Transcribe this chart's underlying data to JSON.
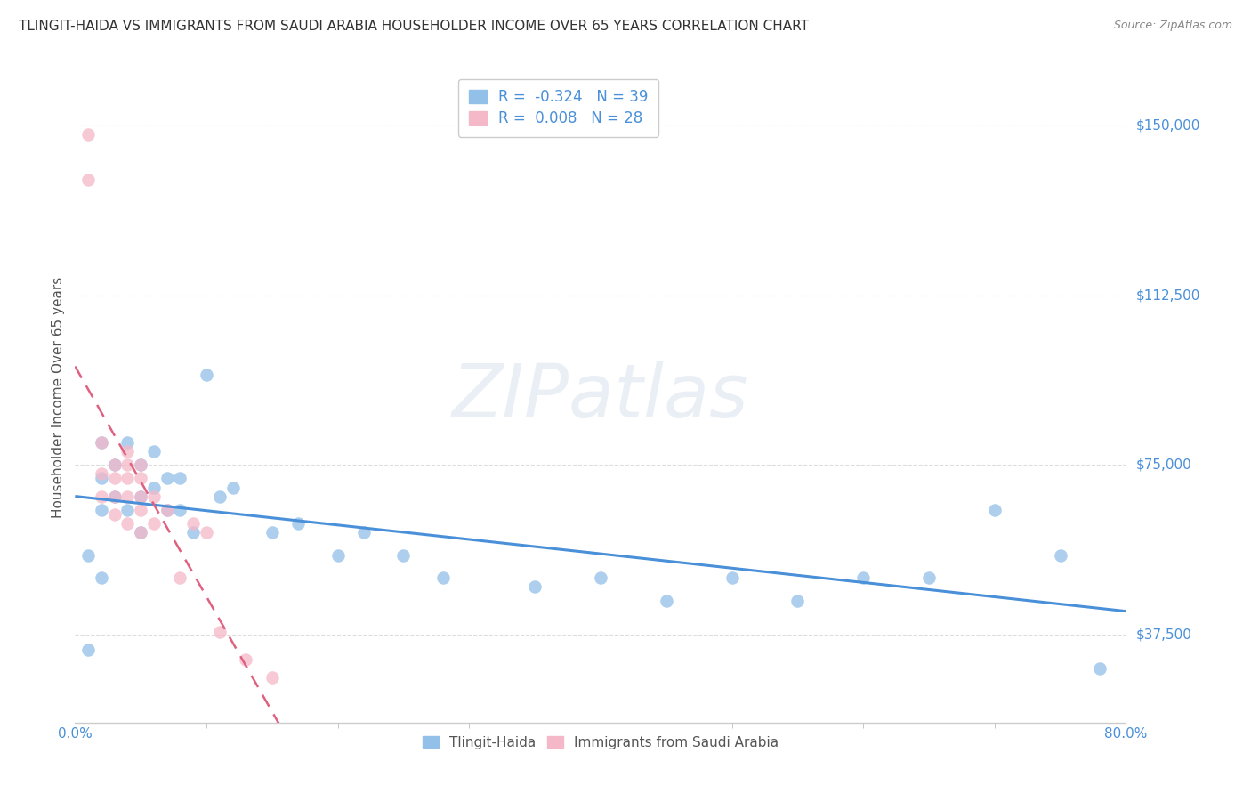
{
  "title": "TLINGIT-HAIDA VS IMMIGRANTS FROM SAUDI ARABIA HOUSEHOLDER INCOME OVER 65 YEARS CORRELATION CHART",
  "source": "Source: ZipAtlas.com",
  "ylabel": "Householder Income Over 65 years",
  "xlim": [
    0.0,
    0.8
  ],
  "ylim": [
    18000,
    162000
  ],
  "yticks": [
    37500,
    75000,
    112500,
    150000
  ],
  "ytick_labels": [
    "$37,500",
    "$75,000",
    "$112,500",
    "$150,000"
  ],
  "xtick_labels": [
    "0.0%",
    "80.0%"
  ],
  "background_color": "#ffffff",
  "grid_color": "#dddddd",
  "watermark_text": "ZIPatlas",
  "blue_color": "#92c0e8",
  "pink_color": "#f5b8c8",
  "blue_line_color": "#4a90d9",
  "pink_line_color": "#e06080",
  "legend_R_blue": "-0.324",
  "legend_N_blue": "39",
  "legend_R_pink": "0.008",
  "legend_N_pink": "28",
  "tlingit_x": [
    0.01,
    0.01,
    0.02,
    0.02,
    0.02,
    0.02,
    0.03,
    0.03,
    0.04,
    0.04,
    0.05,
    0.05,
    0.05,
    0.06,
    0.06,
    0.07,
    0.07,
    0.08,
    0.08,
    0.09,
    0.1,
    0.11,
    0.12,
    0.15,
    0.17,
    0.2,
    0.22,
    0.25,
    0.28,
    0.35,
    0.4,
    0.45,
    0.5,
    0.55,
    0.6,
    0.65,
    0.7,
    0.75,
    0.78
  ],
  "tlingit_y": [
    55000,
    34000,
    80000,
    72000,
    65000,
    50000,
    75000,
    68000,
    80000,
    65000,
    75000,
    68000,
    60000,
    78000,
    70000,
    72000,
    65000,
    72000,
    65000,
    60000,
    95000,
    68000,
    70000,
    60000,
    62000,
    55000,
    60000,
    55000,
    50000,
    48000,
    50000,
    45000,
    50000,
    45000,
    50000,
    50000,
    65000,
    55000,
    30000
  ],
  "saudi_x": [
    0.01,
    0.01,
    0.02,
    0.02,
    0.02,
    0.03,
    0.03,
    0.03,
    0.03,
    0.04,
    0.04,
    0.04,
    0.04,
    0.04,
    0.05,
    0.05,
    0.05,
    0.05,
    0.05,
    0.06,
    0.06,
    0.07,
    0.08,
    0.09,
    0.1,
    0.11,
    0.13,
    0.15
  ],
  "saudi_y": [
    148000,
    138000,
    80000,
    73000,
    68000,
    75000,
    72000,
    68000,
    64000,
    78000,
    75000,
    72000,
    68000,
    62000,
    75000,
    72000,
    68000,
    65000,
    60000,
    68000,
    62000,
    65000,
    50000,
    62000,
    60000,
    38000,
    32000,
    28000
  ]
}
